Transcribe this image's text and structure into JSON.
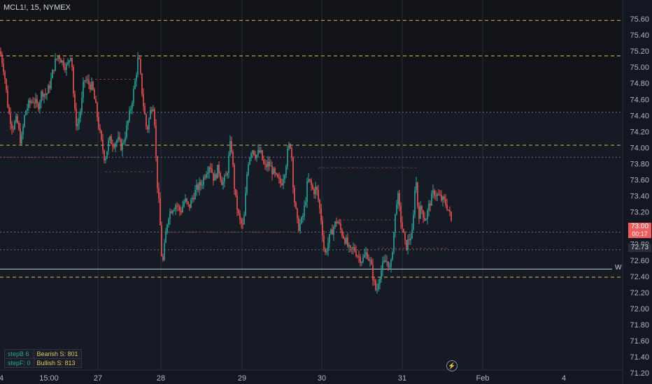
{
  "header": {
    "title": "MCL1!, 15, NYMEX"
  },
  "chart_data": {
    "type": "candlestick",
    "price_axis": [
      "75.60",
      "75.40",
      "75.20",
      "75.00",
      "74.80",
      "74.60",
      "74.40",
      "74.20",
      "74.00",
      "73.80",
      "73.60",
      "73.40",
      "73.20",
      "73.00",
      "72.80",
      "72.60",
      "72.40",
      "72.20",
      "72.00",
      "71.80",
      "71.60",
      "71.40",
      "71.20"
    ],
    "time_axis": [
      "4",
      "15:00",
      "27",
      "28",
      "29",
      "30",
      "31",
      "Feb",
      "4"
    ],
    "ylim": [
      71.1,
      75.7
    ],
    "close_path": [
      [
        0,
        75.2
      ],
      [
        6,
        74.95
      ],
      [
        12,
        74.45
      ],
      [
        18,
        74.25
      ],
      [
        24,
        74.35
      ],
      [
        30,
        74.05
      ],
      [
        36,
        74.45
      ],
      [
        42,
        74.55
      ],
      [
        48,
        74.6
      ],
      [
        54,
        74.5
      ],
      [
        60,
        74.7
      ],
      [
        66,
        74.65
      ],
      [
        72,
        74.8
      ],
      [
        78,
        75.05
      ],
      [
        84,
        75.15
      ],
      [
        90,
        75.05
      ],
      [
        96,
        75.0
      ],
      [
        102,
        75.2
      ],
      [
        106,
        74.5
      ],
      [
        110,
        74.25
      ],
      [
        116,
        74.5
      ],
      [
        120,
        74.85
      ],
      [
        126,
        74.8
      ],
      [
        132,
        74.75
      ],
      [
        138,
        74.45
      ],
      [
        144,
        74.1
      ],
      [
        150,
        73.85
      ],
      [
        156,
        74.1
      ],
      [
        162,
        74.05
      ],
      [
        168,
        74.1
      ],
      [
        174,
        74.0
      ],
      [
        180,
        74.2
      ],
      [
        186,
        74.45
      ],
      [
        192,
        74.75
      ],
      [
        198,
        75.15
      ],
      [
        204,
        74.6
      ],
      [
        210,
        74.2
      ],
      [
        216,
        74.5
      ],
      [
        220,
        74.55
      ],
      [
        224,
        73.65
      ],
      [
        228,
        73.2
      ],
      [
        232,
        72.5
      ],
      [
        236,
        72.85
      ],
      [
        240,
        73.15
      ],
      [
        246,
        73.25
      ],
      [
        252,
        73.3
      ],
      [
        258,
        73.2
      ],
      [
        264,
        73.35
      ],
      [
        270,
        73.25
      ],
      [
        276,
        73.4
      ],
      [
        282,
        73.5
      ],
      [
        288,
        73.55
      ],
      [
        294,
        73.7
      ],
      [
        300,
        73.8
      ],
      [
        306,
        73.6
      ],
      [
        312,
        73.75
      ],
      [
        318,
        73.55
      ],
      [
        324,
        73.65
      ],
      [
        330,
        74.1
      ],
      [
        336,
        73.4
      ],
      [
        342,
        73.1
      ],
      [
        348,
        73.0
      ],
      [
        354,
        73.8
      ],
      [
        360,
        74.0
      ],
      [
        366,
        73.9
      ],
      [
        372,
        73.95
      ],
      [
        378,
        73.75
      ],
      [
        384,
        73.8
      ],
      [
        390,
        73.7
      ],
      [
        396,
        73.6
      ],
      [
        402,
        73.55
      ],
      [
        408,
        73.75
      ],
      [
        412,
        74.0
      ],
      [
        416,
        74.05
      ],
      [
        420,
        73.4
      ],
      [
        426,
        73.0
      ],
      [
        432,
        73.1
      ],
      [
        436,
        73.3
      ],
      [
        440,
        73.6
      ],
      [
        444,
        73.55
      ],
      [
        448,
        73.45
      ],
      [
        452,
        73.5
      ],
      [
        456,
        73.3
      ],
      [
        460,
        73.05
      ],
      [
        464,
        72.65
      ],
      [
        470,
        72.85
      ],
      [
        476,
        73.0
      ],
      [
        482,
        73.1
      ],
      [
        488,
        72.95
      ],
      [
        494,
        72.85
      ],
      [
        500,
        72.7
      ],
      [
        506,
        72.75
      ],
      [
        512,
        72.65
      ],
      [
        518,
        72.6
      ],
      [
        524,
        72.7
      ],
      [
        530,
        72.55
      ],
      [
        534,
        72.35
      ],
      [
        538,
        72.2
      ],
      [
        542,
        72.4
      ],
      [
        548,
        72.55
      ],
      [
        554,
        72.6
      ],
      [
        558,
        72.45
      ],
      [
        564,
        73.05
      ],
      [
        568,
        73.45
      ],
      [
        572,
        73.15
      ],
      [
        576,
        72.95
      ],
      [
        580,
        72.75
      ],
      [
        584,
        72.85
      ],
      [
        590,
        72.95
      ],
      [
        594,
        73.7
      ],
      [
        598,
        73.15
      ],
      [
        602,
        73.25
      ],
      [
        608,
        73.1
      ],
      [
        614,
        73.3
      ],
      [
        620,
        73.45
      ],
      [
        626,
        73.4
      ],
      [
        632,
        73.35
      ],
      [
        638,
        73.3
      ],
      [
        642,
        73.2
      ],
      [
        646,
        73.05
      ]
    ],
    "levels": [
      {
        "price": 75.58,
        "style": "dashed",
        "color": "#e6b84a"
      },
      {
        "price": 75.14,
        "style": "dashed",
        "color": "#e6b84a"
      },
      {
        "price": 74.03,
        "style": "dashed",
        "color": "#e6b84a"
      },
      {
        "price": 72.39,
        "style": "dashed",
        "color": "#e6b84a"
      },
      {
        "price": 74.44,
        "style": "dotted",
        "color": "#6a6e7a"
      },
      {
        "price": 73.88,
        "style": "dotted",
        "color": "#6a6e7a"
      },
      {
        "price": 72.73,
        "style": "dotted",
        "color": "#6a6e7a"
      },
      {
        "price": 72.95,
        "style": "dotted",
        "color": "#6a6e7a"
      },
      {
        "price": 72.49,
        "style": "solid",
        "color": "#c8cbd2"
      }
    ],
    "w_label": "W",
    "current_price": "73.00",
    "countdown": "00:17",
    "second_price": "72.73",
    "colors": {
      "up": "#26a69a",
      "down": "#ef5350",
      "bg": "#131722",
      "upper_zone": "#121318",
      "level": "#e6b84a",
      "price_tag": "#f05b5b",
      "second_tag": "#2a2e39"
    }
  },
  "stats_table": {
    "row1": {
      "step": "stepB 6",
      "bear": "Bearish S: 801"
    },
    "row2": {
      "step": "stepF: 0",
      "bull": "Bullish S: 813"
    }
  },
  "icons": {
    "replay": "lightning-icon"
  }
}
